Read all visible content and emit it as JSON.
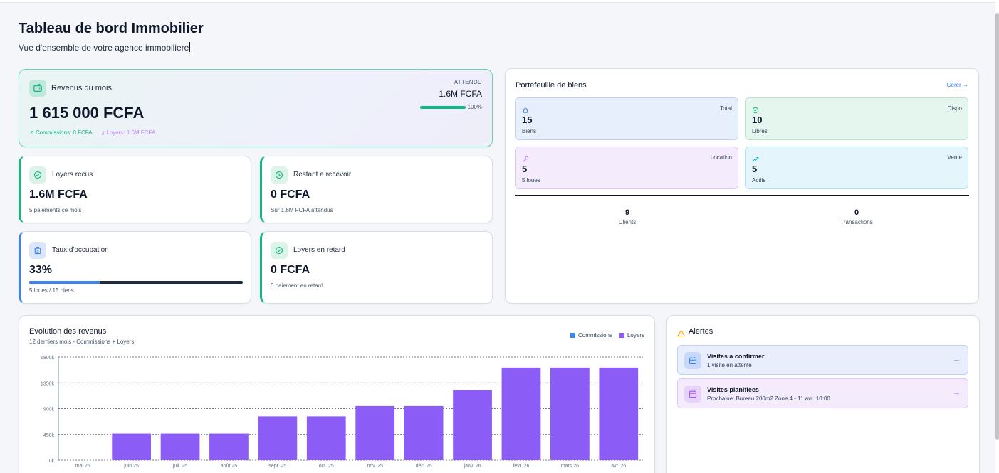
{
  "header": {
    "title": "Tableau de bord Immobilier",
    "subtitle": "Vue d'ensemble de votre agence immobiliere"
  },
  "revenue": {
    "label": "Revenus du mois",
    "amount": "1 615 000 FCFA",
    "commissions": "Commissions: 0 FCFA",
    "loyers": "Loyers: 1.6M FCFA",
    "expected_label": "ATTENDU",
    "expected_value": "1.6M FCFA",
    "progress_pct": 100,
    "progress_label": "100%",
    "colors": {
      "accent": "#10b981"
    }
  },
  "stats": [
    {
      "label": "Loyers recus",
      "value": "1.6M FCFA",
      "note": "5 paiements ce mois",
      "icon": "check-circle-icon"
    },
    {
      "label": "Restant a recevoir",
      "value": "0 FCFA",
      "note": "Sur 1.6M FCFA attendus",
      "icon": "clock-icon"
    },
    {
      "label": "Taux d'occupation",
      "value": "33%",
      "note": "5 loues / 15 biens",
      "icon": "building-icon",
      "occupancy_pct": 33
    },
    {
      "label": "Loyers en retard",
      "value": "0 FCFA",
      "note": "0 paiement en retard",
      "icon": "check-circle-icon"
    }
  ],
  "portfolio": {
    "title": "Portefeuille de biens",
    "manage_label": "Gerer →",
    "tiles": [
      {
        "label": "Total",
        "value": "15",
        "sub": "Biens",
        "icon": "home-icon"
      },
      {
        "label": "Dispo",
        "value": "10",
        "sub": "Libres",
        "icon": "check-circle-icon"
      },
      {
        "label": "Location",
        "value": "5",
        "sub": "5 loues",
        "icon": "key-icon"
      },
      {
        "label": "Vente",
        "value": "5",
        "sub": "Actifs",
        "icon": "trend-up-icon"
      }
    ],
    "kpis": [
      {
        "value": "9",
        "label": "Clients"
      },
      {
        "value": "0",
        "label": "Transactions"
      }
    ]
  },
  "chart": {
    "title": "Evolution des revenus",
    "subtitle": "12 derniers mois - Commissions + Loyers",
    "legend": [
      {
        "name": "Commissions",
        "color": "#3b82f6"
      },
      {
        "name": "Loyers",
        "color": "#8b5cf6"
      }
    ]
  },
  "chart_data": {
    "type": "bar",
    "categories": [
      "mai 25",
      "juin 25",
      "juil. 25",
      "août 25",
      "sept. 25",
      "oct. 25",
      "nov. 25",
      "déc. 25",
      "janv. 26",
      "févr. 26",
      "mars 26",
      "avr. 26"
    ],
    "series": [
      {
        "name": "Commissions",
        "color": "#3b82f6",
        "values": [
          0,
          0,
          0,
          0,
          0,
          0,
          0,
          0,
          0,
          0,
          0,
          0
        ]
      },
      {
        "name": "Loyers",
        "color": "#8b5cf6",
        "values": [
          0,
          465,
          465,
          465,
          765,
          765,
          945,
          945,
          1220,
          1615,
          1615,
          1615
        ]
      }
    ],
    "yticks": [
      "0k",
      "450k",
      "900k",
      "1350k",
      "1800k"
    ],
    "ylim": [
      0,
      1800
    ],
    "stacked": true,
    "grid": true,
    "legend_position": "top-right"
  },
  "alerts": {
    "title": "Alertes",
    "items": [
      {
        "title": "Visites a confirmer",
        "sub": "1 visite en attente",
        "icon": "calendar-icon",
        "arrow": "→"
      },
      {
        "title": "Visites planifiees",
        "sub": "Prochaine: Bureau 200m2 Zone 4 - 11 avr. 10:00",
        "icon": "calendar-icon",
        "arrow": "→"
      }
    ]
  }
}
